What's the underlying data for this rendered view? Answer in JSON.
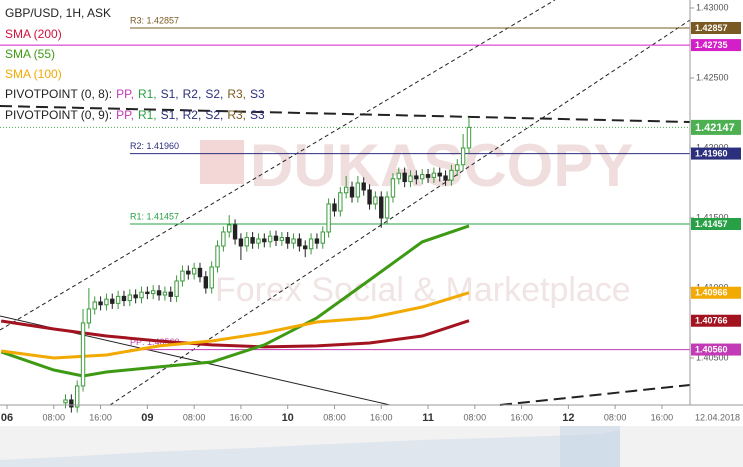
{
  "chart_data": {
    "type": "candlestick",
    "title": "GBP/USD, 1H, ASK",
    "watermark": "DUKASCOPY",
    "watermark_sub": "Forex Social & Marketplace",
    "date_label": "12.04.2018",
    "xlim": [
      -1.2,
      116.8
    ],
    "ylim": [
      1.40164,
      1.43057
    ],
    "xticks": [
      {
        "value": 0,
        "label": "06"
      },
      {
        "value": 8,
        "label": "08:00"
      },
      {
        "value": 16,
        "label": "16:00"
      },
      {
        "value": 24,
        "label": "09"
      },
      {
        "value": 32,
        "label": "08:00"
      },
      {
        "value": 40,
        "label": "16:00"
      },
      {
        "value": 48,
        "label": "10"
      },
      {
        "value": 56,
        "label": "08:00"
      },
      {
        "value": 64,
        "label": "16:00"
      },
      {
        "value": 72,
        "label": "11"
      },
      {
        "value": 80,
        "label": "08:00"
      },
      {
        "value": 88,
        "label": "16:00"
      },
      {
        "value": 96,
        "label": "12"
      },
      {
        "value": 104,
        "label": "08:00"
      },
      {
        "value": 112,
        "label": "16:00"
      }
    ],
    "yticks": [
      {
        "value": 1.43,
        "label": "1.43000"
      },
      {
        "value": 1.425,
        "label": "1.42500"
      },
      {
        "value": 1.42,
        "label": "1.42000"
      },
      {
        "value": 1.415,
        "label": "1.41500"
      },
      {
        "value": 1.41,
        "label": "1.41000"
      },
      {
        "value": 1.405,
        "label": "1.40500"
      }
    ],
    "candles": {
      "up_color": "#3c9a3c",
      "down_color": "#222222",
      "last_label": "1.42147",
      "last_color": "#4caf50",
      "x": [
        10,
        11,
        12,
        13,
        14,
        15,
        16,
        17,
        18,
        19,
        20,
        21,
        22,
        23,
        24,
        25,
        26,
        27,
        28,
        29,
        30,
        31,
        32,
        33,
        34,
        35,
        36,
        37,
        38,
        39,
        40,
        41,
        42,
        43,
        44,
        45,
        46,
        47,
        48,
        49,
        50,
        51,
        52,
        53,
        54,
        55,
        56,
        57,
        58,
        59,
        60,
        61,
        62,
        63,
        64,
        65,
        66,
        67,
        68,
        69,
        70,
        71,
        72,
        73,
        74,
        75,
        76,
        77,
        78,
        79
      ],
      "open": [
        1.4018,
        1.402,
        1.4015,
        1.403,
        1.4075,
        1.4085,
        1.409,
        1.4088,
        1.4092,
        1.4089,
        1.4094,
        1.4091,
        1.4095,
        1.4093,
        1.4097,
        1.4096,
        1.4098,
        1.4095,
        1.4097,
        1.4094,
        1.4105,
        1.4112,
        1.411,
        1.4114,
        1.4108,
        1.41,
        1.4115,
        1.413,
        1.414,
        1.4145,
        1.4135,
        1.413,
        1.4136,
        1.4132,
        1.4135,
        1.4133,
        1.4137,
        1.4134,
        1.4136,
        1.4132,
        1.4135,
        1.413,
        1.4128,
        1.4135,
        1.4132,
        1.414,
        1.416,
        1.4155,
        1.4168,
        1.4172,
        1.4165,
        1.4175,
        1.417,
        1.416,
        1.4165,
        1.415,
        1.4165,
        1.4178,
        1.4182,
        1.4176,
        1.418,
        1.4178,
        1.4181,
        1.4179,
        1.4182,
        1.418,
        1.4177,
        1.4184,
        1.4188,
        1.42
      ],
      "high": [
        1.4024,
        1.4024,
        1.4034,
        1.4085,
        1.41,
        1.4094,
        1.4094,
        1.4096,
        1.4096,
        1.4098,
        1.4098,
        1.4099,
        1.4099,
        1.4101,
        1.4101,
        1.4102,
        1.4102,
        1.4101,
        1.4101,
        1.4109,
        1.4116,
        1.4116,
        1.4118,
        1.4118,
        1.4112,
        1.4119,
        1.4134,
        1.4144,
        1.4152,
        1.4149,
        1.4139,
        1.414,
        1.414,
        1.4139,
        1.4139,
        1.4141,
        1.4141,
        1.414,
        1.414,
        1.4139,
        1.4139,
        1.4134,
        1.4139,
        1.4139,
        1.4144,
        1.4164,
        1.4164,
        1.4172,
        1.418,
        1.4176,
        1.418,
        1.4179,
        1.4174,
        1.4169,
        1.4169,
        1.4169,
        1.4182,
        1.4186,
        1.4186,
        1.4184,
        1.4184,
        1.4185,
        1.4185,
        1.4186,
        1.4186,
        1.4184,
        1.4188,
        1.4192,
        1.421,
        1.4222
      ],
      "low": [
        1.4014,
        1.4011,
        1.4011,
        1.4026,
        1.4071,
        1.4081,
        1.4084,
        1.4084,
        1.4085,
        1.4085,
        1.4087,
        1.4087,
        1.4089,
        1.4089,
        1.4092,
        1.4092,
        1.4091,
        1.4091,
        1.409,
        1.409,
        1.4101,
        1.4106,
        1.4106,
        1.4104,
        1.4096,
        1.4096,
        1.4111,
        1.4126,
        1.4136,
        1.4131,
        1.412,
        1.4126,
        1.4128,
        1.4128,
        1.4129,
        1.4129,
        1.413,
        1.413,
        1.4128,
        1.4128,
        1.4126,
        1.4122,
        1.4124,
        1.4128,
        1.4128,
        1.4136,
        1.4151,
        1.4151,
        1.4164,
        1.4161,
        1.4161,
        1.4166,
        1.4156,
        1.4156,
        1.4143,
        1.4146,
        1.4161,
        1.4174,
        1.4172,
        1.4172,
        1.4174,
        1.4174,
        1.4175,
        1.4175,
        1.4176,
        1.4173,
        1.4173,
        1.418,
        1.4184,
        1.4196
      ],
      "close": [
        1.402,
        1.4015,
        1.403,
        1.4075,
        1.4085,
        1.409,
        1.4088,
        1.4092,
        1.4089,
        1.4094,
        1.4091,
        1.4095,
        1.4093,
        1.4097,
        1.4096,
        1.4098,
        1.4095,
        1.4097,
        1.4094,
        1.4105,
        1.4112,
        1.411,
        1.4114,
        1.4108,
        1.41,
        1.4115,
        1.413,
        1.414,
        1.4145,
        1.4135,
        1.413,
        1.4136,
        1.4132,
        1.4135,
        1.4133,
        1.4137,
        1.4134,
        1.4136,
        1.4132,
        1.4135,
        1.413,
        1.4128,
        1.4135,
        1.4132,
        1.414,
        1.416,
        1.4155,
        1.4168,
        1.4172,
        1.4165,
        1.4175,
        1.417,
        1.416,
        1.4165,
        1.415,
        1.4165,
        1.4178,
        1.4182,
        1.4176,
        1.418,
        1.4178,
        1.4181,
        1.4179,
        1.4182,
        1.418,
        1.4177,
        1.4184,
        1.4188,
        1.42,
        1.42147
      ]
    },
    "series": [
      {
        "name": "SMA (200)",
        "color": "#a3121f",
        "legend_color": "#d0103a",
        "last_label": "1.40766",
        "x": [
          -1,
          8,
          17,
          26,
          35,
          44,
          53,
          62,
          71,
          79
        ],
        "values": [
          1.40764,
          1.40707,
          1.40657,
          1.40621,
          1.40593,
          1.40579,
          1.40586,
          1.40607,
          1.40657,
          1.40766
        ]
      },
      {
        "name": "SMA (55)",
        "color": "#3d9a12",
        "legend_color": "#3d9a12",
        "x": [
          -1,
          8,
          13,
          17,
          26,
          35,
          44,
          53,
          62,
          71,
          79
        ],
        "values": [
          1.40543,
          1.40414,
          1.40371,
          1.404,
          1.40436,
          1.40471,
          1.40593,
          1.40786,
          1.41057,
          1.41329,
          1.41443
        ]
      },
      {
        "name": "SMA (100)",
        "color": "#f2a900",
        "legend_color": "#f2a900",
        "last_label": "1.40966",
        "x": [
          -1,
          8,
          17,
          26,
          35,
          44,
          53,
          62,
          71,
          79
        ],
        "values": [
          1.4055,
          1.405,
          1.40521,
          1.40586,
          1.40621,
          1.40679,
          1.40757,
          1.40786,
          1.40864,
          1.40966
        ]
      }
    ],
    "levels": [
      {
        "label": "R3: 1.42857",
        "value": 1.42857,
        "value_label": "1.42857",
        "color": "#7a5a22"
      },
      {
        "value": 1.42735,
        "value_label": "1.42735",
        "color": "#d41fc8"
      },
      {
        "label": "R2: 1.41960",
        "value": 1.4196,
        "value_label": "1.41960",
        "color": "#2b2f7d"
      },
      {
        "label": "R1: 1.41457",
        "value": 1.41457,
        "value_label": "1.41457",
        "color": "#27a046"
      },
      {
        "label": "PP: 1.40560",
        "value": 1.4056,
        "value_label": "1.40560",
        "color": "#c23ab5"
      }
    ],
    "pivot_legends": [
      "PIVOTPOINT (0, 8):",
      "PIVOTPOINT (0, 9):"
    ],
    "pivot_items": [
      {
        "name": "PP,",
        "color": "#c23ab5"
      },
      {
        "name": "R1,",
        "color": "#27a046"
      },
      {
        "name": "S1,",
        "color": "#2b2f7d"
      },
      {
        "name": "R2,",
        "color": "#2b2f7d"
      },
      {
        "name": "S2,",
        "color": "#2b2f7d"
      },
      {
        "name": "R3,",
        "color": "#7a5a22"
      },
      {
        "name": "S3",
        "color": "#2b2f7d"
      }
    ]
  }
}
